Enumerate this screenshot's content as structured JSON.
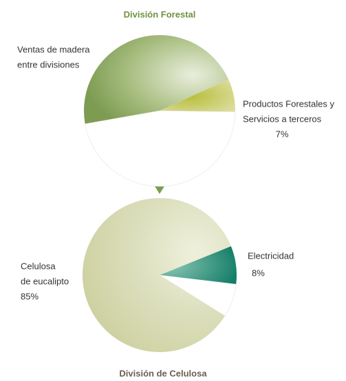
{
  "chart_data": [
    {
      "type": "pie",
      "title": "División Forestal",
      "categories": [
        [
          "Ventas de madera",
          "entre divisiones"
        ],
        [
          "Productos Forestales y",
          "Servicios a terceros"
        ],
        null
      ],
      "values": [
        46,
        7,
        47
      ],
      "value_labels": [
        null,
        "7%",
        null
      ],
      "colors": [
        "#7d9c52",
        "#c4c85a",
        "#ffffff"
      ]
    },
    {
      "type": "pie",
      "title": "División de Celulosa",
      "categories": [
        [
          "Electricidad"
        ],
        null,
        [
          "Celulosa",
          "de eucalipto"
        ]
      ],
      "values": [
        8,
        7,
        85
      ],
      "value_labels": [
        "8%",
        null,
        "85%"
      ],
      "colors": [
        "#1f8a74",
        "#ffffff",
        "#d2d6a8"
      ]
    }
  ]
}
